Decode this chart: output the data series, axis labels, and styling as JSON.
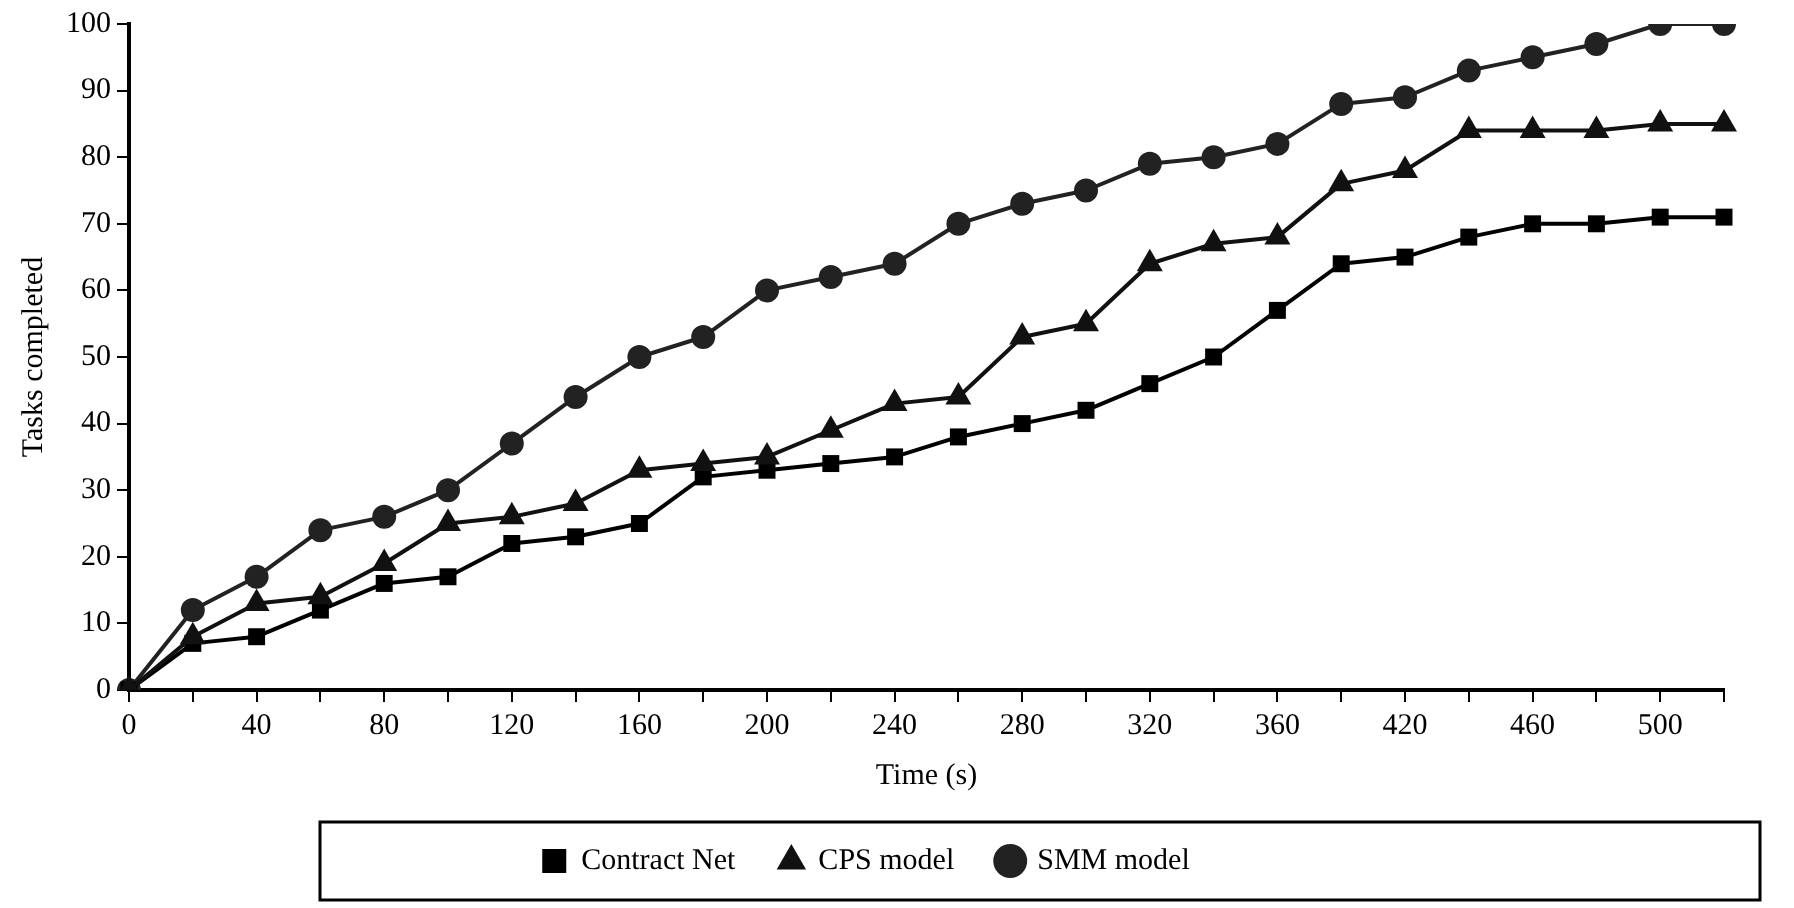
{
  "chart_data": {
    "type": "line",
    "xlabel": "Time (s)",
    "ylabel": "Tasks completed",
    "categories": [
      "0",
      null,
      "40",
      null,
      "80",
      null,
      "120",
      null,
      "160",
      null,
      "200",
      null,
      "240",
      null,
      "280",
      null,
      "320",
      null,
      "360",
      null,
      "420",
      null,
      "460",
      null,
      "500",
      null
    ],
    "series": [
      {
        "name": "Contract Net",
        "color": "#000000",
        "marker": "square",
        "values": [
          0,
          7,
          8,
          12,
          16,
          17,
          22,
          23,
          25,
          32,
          33,
          34,
          35,
          38,
          40,
          42,
          46,
          50,
          57,
          64,
          65,
          68,
          70,
          70,
          71,
          71
        ]
      },
      {
        "name": "CPS model",
        "color": "#111111",
        "marker": "triangle",
        "values": [
          0,
          8,
          13,
          14,
          19,
          25,
          26,
          28,
          33,
          34,
          35,
          39,
          43,
          44,
          53,
          55,
          64,
          67,
          68,
          76,
          78,
          84,
          84,
          84,
          85,
          85
        ]
      },
      {
        "name": "SMM model",
        "color": "#222222",
        "marker": "circle",
        "values": [
          0,
          12,
          17,
          24,
          26,
          30,
          37,
          44,
          50,
          53,
          60,
          62,
          64,
          70,
          73,
          75,
          79,
          80,
          82,
          88,
          89,
          93,
          95,
          97,
          100,
          100
        ]
      }
    ],
    "ylim": [
      0,
      100
    ],
    "yticks": [
      0,
      10,
      20,
      30,
      40,
      50,
      60,
      70,
      80,
      90,
      100
    ],
    "grid": false,
    "legend": "bottom",
    "line_style": "solid"
  }
}
